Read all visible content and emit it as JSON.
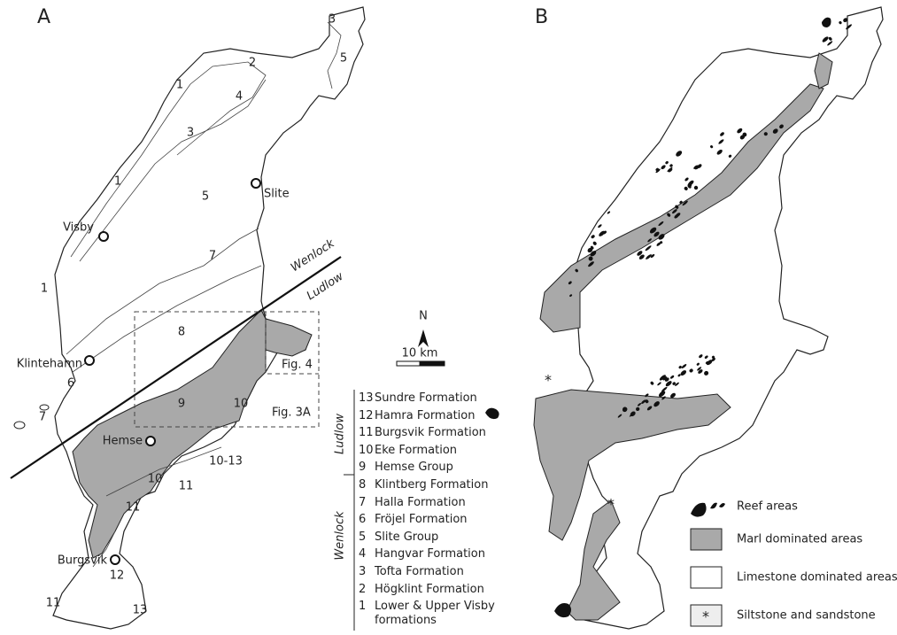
{
  "panel_a": {
    "label": "A",
    "unit_labels": [
      "3",
      "5",
      "2",
      "1",
      "4",
      "3",
      "1",
      "5",
      "7",
      "1",
      "8",
      "6",
      "9",
      "10",
      "7",
      "10-13",
      "10",
      "11",
      "11",
      "12",
      "11",
      "13"
    ],
    "towns": [
      "Slite",
      "Visby",
      "Klintehamn",
      "Hemse",
      "Burgsvik"
    ],
    "boundary": {
      "upper": "Wenlock",
      "lower": "Ludlow"
    },
    "insets": [
      "Fig. 4",
      "Fig. 3A"
    ]
  },
  "scale": {
    "north": "N",
    "distance": "10 km"
  },
  "stratigraphy": {
    "series": [
      {
        "name": "Ludlow",
        "units": [
          {
            "number": "13",
            "name": "Sundre Formation"
          },
          {
            "number": "12",
            "name": "Hamra Formation"
          },
          {
            "number": "11",
            "name": "Burgsvik Formation"
          },
          {
            "number": "10",
            "name": "Eke Formation"
          },
          {
            "number": "9",
            "name": "Hemse Group"
          }
        ]
      },
      {
        "name": "Wenlock",
        "units": [
          {
            "number": "8",
            "name": "Klintberg Formation"
          },
          {
            "number": "7",
            "name": "Halla Formation"
          },
          {
            "number": "6",
            "name": "Fröjel Formation"
          },
          {
            "number": "5",
            "name": "Slite Group"
          },
          {
            "number": "4",
            "name": "Hangvar Formation"
          },
          {
            "number": "3",
            "name": "Tofta Formation"
          },
          {
            "number": "2",
            "name": "Högklint Formation"
          },
          {
            "number": "1",
            "name": "Lower & Upper Visby formations"
          }
        ]
      }
    ]
  },
  "panel_b": {
    "label": "B",
    "legend": [
      "Reef areas",
      "Marl dominated areas",
      "Limestone dominated areas",
      "Siltstone and sandstone"
    ],
    "markers": [
      "*",
      "*",
      "*"
    ]
  }
}
